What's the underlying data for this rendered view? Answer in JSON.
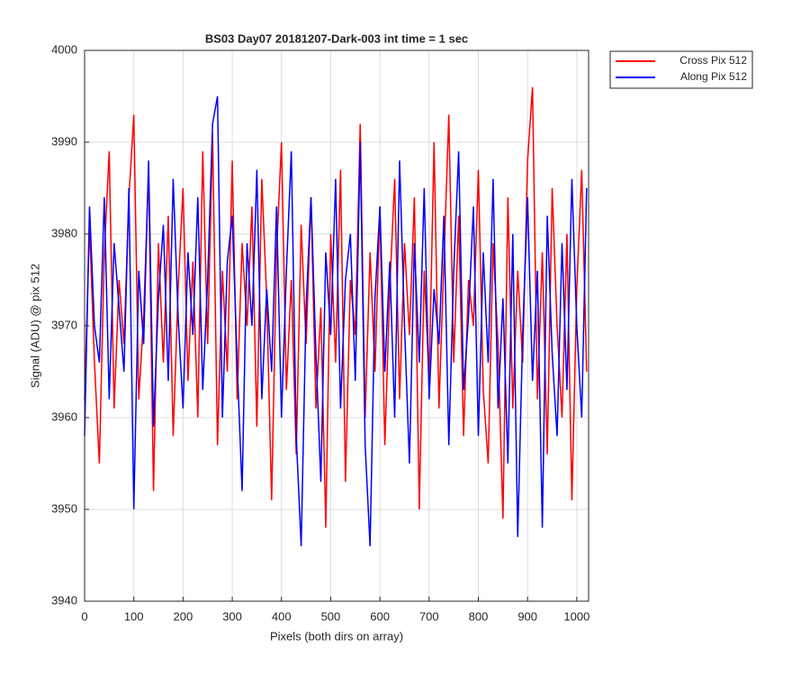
{
  "chart_data": {
    "type": "line",
    "title": "BS03 Day07 20181207-Dark-003 int time = 1 sec",
    "x_label": "Pixels (both dirs on array)",
    "y_label": "Signal (ADU) @ pix 512",
    "x": [
      0,
      10,
      20,
      30,
      40,
      50,
      60,
      70,
      80,
      90,
      100,
      110,
      120,
      130,
      140,
      150,
      160,
      170,
      180,
      190,
      200,
      210,
      220,
      230,
      240,
      250,
      260,
      270,
      280,
      290,
      300,
      310,
      320,
      330,
      340,
      350,
      360,
      370,
      380,
      390,
      400,
      410,
      420,
      430,
      440,
      450,
      460,
      470,
      480,
      490,
      500,
      510,
      520,
      530,
      540,
      550,
      560,
      570,
      580,
      590,
      600,
      610,
      620,
      630,
      640,
      650,
      660,
      670,
      680,
      690,
      700,
      710,
      720,
      730,
      740,
      750,
      760,
      770,
      780,
      790,
      800,
      810,
      820,
      830,
      840,
      850,
      860,
      870,
      880,
      890,
      900,
      910,
      920,
      930,
      940,
      950,
      960,
      970,
      980,
      990,
      1000,
      1010,
      1020
    ],
    "series": [
      {
        "name": "Cross Pix 512",
        "color": "#ff0000",
        "values": [
          3962,
          3981,
          3966,
          3955,
          3978,
          3989,
          3961,
          3975,
          3968,
          3984,
          3993,
          3962,
          3971,
          3987,
          3952,
          3979,
          3966,
          3982,
          3958,
          3974,
          3985,
          3964,
          3977,
          3960,
          3989,
          3968,
          3991,
          3957,
          3976,
          3965,
          3988,
          3962,
          3979,
          3970,
          3983,
          3959,
          3986,
          3973,
          3951,
          3978,
          3990,
          3963,
          3975,
          3956,
          3981,
          3968,
          3984,
          3961,
          3972,
          3948,
          3980,
          3966,
          3987,
          3953,
          3975,
          3969,
          3992,
          3960,
          3978,
          3965,
          3983,
          3957,
          3974,
          3986,
          3962,
          3979,
          3969,
          3984,
          3950,
          3976,
          3964,
          3990,
          3961,
          3977,
          3993,
          3966,
          3982,
          3958,
          3975,
          3970,
          3987,
          3963,
          3955,
          3979,
          3968,
          3949,
          3984,
          3961,
          3976,
          3966,
          3988,
          3996,
          3962,
          3978,
          3956,
          3985,
          3970,
          3960,
          3980,
          3951,
          3974,
          3987,
          3965
        ]
      },
      {
        "name": "Along Pix 512",
        "color": "#0000ff",
        "values": [
          3958,
          3983,
          3970,
          3966,
          3984,
          3962,
          3979,
          3972,
          3965,
          3985,
          3950,
          3976,
          3968,
          3988,
          3959,
          3973,
          3981,
          3964,
          3986,
          3971,
          3961,
          3978,
          3969,
          3984,
          3963,
          3975,
          3992,
          3995,
          3960,
          3977,
          3982,
          3966,
          3952,
          3979,
          3970,
          3987,
          3962,
          3974,
          3965,
          3983,
          3960,
          3976,
          3989,
          3958,
          3946,
          3972,
          3984,
          3967,
          3953,
          3978,
          3969,
          3986,
          3961,
          3975,
          3980,
          3964,
          3990,
          3957,
          3946,
          3973,
          3983,
          3965,
          3977,
          3960,
          3988,
          3970,
          3955,
          3979,
          3966,
          3985,
          3962,
          3974,
          3968,
          3982,
          3957,
          3976,
          3989,
          3963,
          3971,
          3983,
          3958,
          3978,
          3966,
          3986,
          3961,
          3973,
          3955,
          3980,
          3947,
          3969,
          3984,
          3964,
          3976,
          3948,
          3982,
          3967,
          3958,
          3979,
          3963,
          3986,
          3970,
          3960,
          3985
        ]
      }
    ],
    "xlim": [
      0,
      1024
    ],
    "xticks": [
      0,
      100,
      200,
      300,
      400,
      500,
      600,
      700,
      800,
      900,
      1000
    ],
    "ylim": [
      3940,
      4000
    ],
    "yticks": [
      3940,
      3950,
      3960,
      3970,
      3980,
      3990,
      4000
    ],
    "grid": true,
    "legend": "northeast-outside"
  }
}
